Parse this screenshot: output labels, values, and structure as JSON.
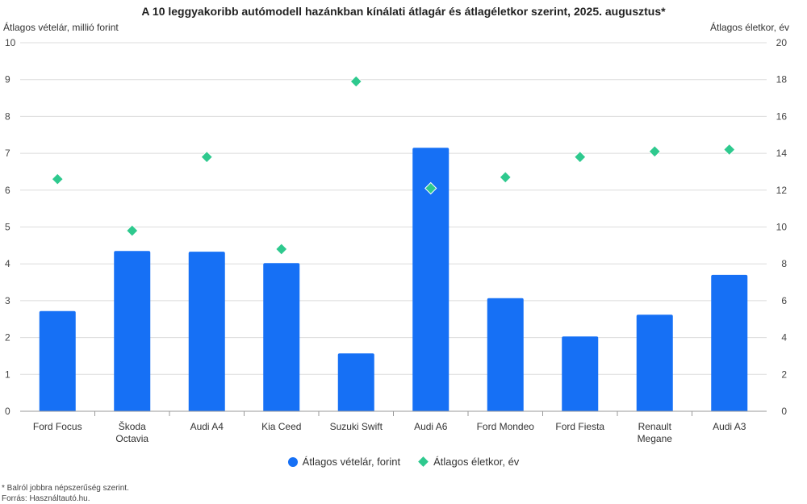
{
  "chart_data": {
    "type": "bar",
    "title": "A 10 leggyakoribb autómodell hazánkban kínálati átlagár és átlagéletkor szerint, 2025. augusztus*",
    "ylabel_left": "Átlagos vételár, millió forint",
    "ylabel_right": "Átlagos életkor, év",
    "categories": [
      [
        "Ford Focus"
      ],
      [
        "Škoda",
        "Octavia"
      ],
      [
        "Audi A4"
      ],
      [
        "Kia Ceed"
      ],
      [
        "Suzuki Swift"
      ],
      [
        "Audi A6"
      ],
      [
        "Ford Mondeo"
      ],
      [
        "Ford Fiesta"
      ],
      [
        "Renault",
        "Megane"
      ],
      [
        "Audi A3"
      ]
    ],
    "series": [
      {
        "name": "Átlagos vételár, forint",
        "type": "bar",
        "axis": "left",
        "color": "#1670f5",
        "values": [
          2.72,
          4.35,
          4.33,
          4.02,
          1.57,
          7.15,
          3.07,
          2.03,
          2.62,
          3.7
        ]
      },
      {
        "name": "Átlagos életkor, év",
        "type": "scatter",
        "marker": "diamond",
        "axis": "right",
        "color": "#2ec98e",
        "values": [
          12.6,
          9.8,
          13.8,
          8.8,
          17.9,
          12.1,
          12.7,
          13.8,
          14.1,
          14.2
        ]
      }
    ],
    "ylim_left": [
      0,
      10
    ],
    "ylim_right": [
      0,
      20
    ],
    "yticks_left": [
      "0",
      "1",
      "2",
      "3",
      "4",
      "5",
      "6",
      "7",
      "8",
      "9",
      "10"
    ],
    "yticks_right": [
      "0",
      "2",
      "4",
      "6",
      "8",
      "10",
      "12",
      "14",
      "16",
      "18",
      "20"
    ],
    "grid": true,
    "legend_position": "bottom"
  },
  "legend": {
    "price": "Átlagos vételár, forint",
    "age": "Átlagos életkor, év"
  },
  "footnotes": {
    "note": "* Balról jobbra népszerűség szerint.",
    "source": "Forrás: Használtautó.hu."
  }
}
